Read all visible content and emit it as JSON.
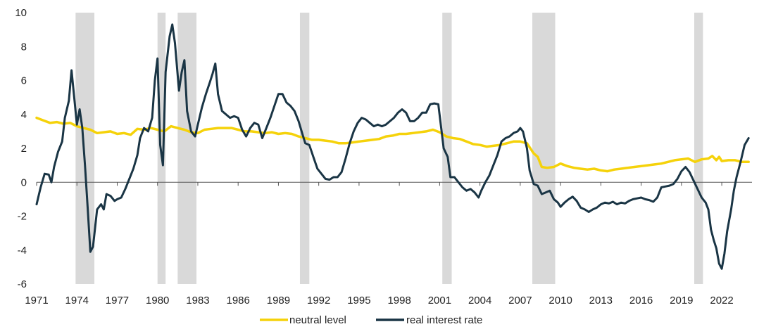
{
  "chart_data": {
    "type": "line",
    "title": "",
    "xlabel": "",
    "ylabel": "",
    "xlim": [
      1971.0,
      2024.25
    ],
    "ylim": [
      -6,
      10
    ],
    "y_ticks": [
      10,
      8,
      6,
      4,
      2,
      0,
      -2,
      -4,
      -6
    ],
    "x_ticks": [
      1971,
      1974,
      1977,
      1980,
      1983,
      1986,
      1989,
      1992,
      1995,
      1998,
      2001,
      2004,
      2007,
      2010,
      2013,
      2016,
      2019,
      2022
    ],
    "legend_position": "bottom-center",
    "recession_bands": [
      [
        1973.9,
        1975.3
      ],
      [
        1980.0,
        1980.6
      ],
      [
        1981.5,
        1982.9
      ],
      [
        1990.6,
        1991.3
      ],
      [
        2001.2,
        2001.9
      ],
      [
        2007.9,
        2009.6
      ],
      [
        2019.95,
        2020.6
      ]
    ],
    "series": [
      {
        "name": "neutral level",
        "color": "#f5d20a",
        "points": [
          [
            1971.0,
            3.8
          ],
          [
            1971.5,
            3.65
          ],
          [
            1972.0,
            3.5
          ],
          [
            1972.5,
            3.55
          ],
          [
            1973.0,
            3.45
          ],
          [
            1973.5,
            3.5
          ],
          [
            1974.0,
            3.3
          ],
          [
            1974.5,
            3.2
          ],
          [
            1975.0,
            3.1
          ],
          [
            1975.5,
            2.9
          ],
          [
            1976.0,
            2.95
          ],
          [
            1976.5,
            3.0
          ],
          [
            1977.0,
            2.85
          ],
          [
            1977.5,
            2.9
          ],
          [
            1978.0,
            2.8
          ],
          [
            1978.5,
            3.15
          ],
          [
            1979.0,
            3.1
          ],
          [
            1979.5,
            3.2
          ],
          [
            1980.0,
            3.1
          ],
          [
            1980.5,
            3.0
          ],
          [
            1981.0,
            3.3
          ],
          [
            1981.5,
            3.2
          ],
          [
            1982.0,
            3.1
          ],
          [
            1982.5,
            2.95
          ],
          [
            1983.0,
            2.9
          ],
          [
            1983.5,
            3.1
          ],
          [
            1984.0,
            3.15
          ],
          [
            1984.5,
            3.2
          ],
          [
            1985.0,
            3.2
          ],
          [
            1985.5,
            3.2
          ],
          [
            1986.0,
            3.1
          ],
          [
            1986.5,
            3.0
          ],
          [
            1987.0,
            3.0
          ],
          [
            1987.5,
            2.95
          ],
          [
            1988.0,
            2.9
          ],
          [
            1988.5,
            2.95
          ],
          [
            1989.0,
            2.85
          ],
          [
            1989.5,
            2.9
          ],
          [
            1990.0,
            2.85
          ],
          [
            1990.5,
            2.7
          ],
          [
            1991.0,
            2.6
          ],
          [
            1991.5,
            2.5
          ],
          [
            1992.0,
            2.5
          ],
          [
            1992.5,
            2.45
          ],
          [
            1993.0,
            2.4
          ],
          [
            1993.5,
            2.3
          ],
          [
            1994.0,
            2.3
          ],
          [
            1994.5,
            2.35
          ],
          [
            1995.0,
            2.4
          ],
          [
            1995.5,
            2.45
          ],
          [
            1996.0,
            2.5
          ],
          [
            1996.5,
            2.55
          ],
          [
            1997.0,
            2.7
          ],
          [
            1997.5,
            2.75
          ],
          [
            1998.0,
            2.85
          ],
          [
            1998.5,
            2.85
          ],
          [
            1999.0,
            2.9
          ],
          [
            1999.5,
            2.95
          ],
          [
            2000.0,
            3.0
          ],
          [
            2000.5,
            3.1
          ],
          [
            2001.0,
            2.95
          ],
          [
            2001.5,
            2.7
          ],
          [
            2002.0,
            2.6
          ],
          [
            2002.5,
            2.55
          ],
          [
            2003.0,
            2.4
          ],
          [
            2003.5,
            2.25
          ],
          [
            2004.0,
            2.2
          ],
          [
            2004.5,
            2.1
          ],
          [
            2005.0,
            2.15
          ],
          [
            2005.5,
            2.2
          ],
          [
            2006.0,
            2.3
          ],
          [
            2006.5,
            2.4
          ],
          [
            2007.0,
            2.4
          ],
          [
            2007.5,
            2.3
          ],
          [
            2008.0,
            1.7
          ],
          [
            2008.3,
            1.5
          ],
          [
            2008.6,
            0.9
          ],
          [
            2009.0,
            0.85
          ],
          [
            2009.5,
            0.9
          ],
          [
            2010.0,
            1.1
          ],
          [
            2010.5,
            0.95
          ],
          [
            2011.0,
            0.85
          ],
          [
            2011.5,
            0.8
          ],
          [
            2012.0,
            0.75
          ],
          [
            2012.5,
            0.8
          ],
          [
            2013.0,
            0.7
          ],
          [
            2013.5,
            0.65
          ],
          [
            2014.0,
            0.75
          ],
          [
            2014.5,
            0.8
          ],
          [
            2015.0,
            0.85
          ],
          [
            2015.5,
            0.9
          ],
          [
            2016.0,
            0.95
          ],
          [
            2016.5,
            1.0
          ],
          [
            2017.0,
            1.05
          ],
          [
            2017.5,
            1.1
          ],
          [
            2018.0,
            1.2
          ],
          [
            2018.5,
            1.3
          ],
          [
            2019.0,
            1.35
          ],
          [
            2019.5,
            1.4
          ],
          [
            2020.0,
            1.2
          ],
          [
            2020.5,
            1.35
          ],
          [
            2021.0,
            1.4
          ],
          [
            2021.3,
            1.55
          ],
          [
            2021.6,
            1.3
          ],
          [
            2021.8,
            1.5
          ],
          [
            2022.0,
            1.25
          ],
          [
            2022.5,
            1.3
          ],
          [
            2023.0,
            1.3
          ],
          [
            2023.5,
            1.2
          ],
          [
            2024.0,
            1.2
          ]
        ]
      },
      {
        "name": "real interest rate",
        "color": "#1a3545",
        "points": [
          [
            1971.0,
            -1.3
          ],
          [
            1971.3,
            -0.3
          ],
          [
            1971.6,
            0.5
          ],
          [
            1971.9,
            0.45
          ],
          [
            1972.1,
            0.0
          ],
          [
            1972.3,
            0.9
          ],
          [
            1972.6,
            1.8
          ],
          [
            1972.9,
            2.4
          ],
          [
            1973.1,
            3.8
          ],
          [
            1973.4,
            4.8
          ],
          [
            1973.6,
            6.6
          ],
          [
            1973.8,
            5.0
          ],
          [
            1974.0,
            3.4
          ],
          [
            1974.2,
            4.3
          ],
          [
            1974.4,
            3.2
          ],
          [
            1974.6,
            1.0
          ],
          [
            1974.8,
            -1.5
          ],
          [
            1975.0,
            -4.1
          ],
          [
            1975.2,
            -3.8
          ],
          [
            1975.5,
            -1.6
          ],
          [
            1975.8,
            -1.3
          ],
          [
            1976.0,
            -1.6
          ],
          [
            1976.2,
            -0.7
          ],
          [
            1976.5,
            -0.8
          ],
          [
            1976.8,
            -1.1
          ],
          [
            1977.0,
            -1.0
          ],
          [
            1977.3,
            -0.9
          ],
          [
            1977.6,
            -0.4
          ],
          [
            1977.9,
            0.2
          ],
          [
            1978.2,
            0.8
          ],
          [
            1978.5,
            1.6
          ],
          [
            1978.7,
            2.6
          ],
          [
            1979.0,
            3.2
          ],
          [
            1979.3,
            3.0
          ],
          [
            1979.6,
            3.8
          ],
          [
            1979.8,
            6.0
          ],
          [
            1980.0,
            7.3
          ],
          [
            1980.2,
            2.2
          ],
          [
            1980.4,
            1.0
          ],
          [
            1980.6,
            6.5
          ],
          [
            1980.9,
            8.6
          ],
          [
            1981.1,
            9.3
          ],
          [
            1981.3,
            8.2
          ],
          [
            1981.6,
            5.4
          ],
          [
            1981.8,
            6.5
          ],
          [
            1982.0,
            7.2
          ],
          [
            1982.2,
            4.2
          ],
          [
            1982.5,
            3.0
          ],
          [
            1982.8,
            2.7
          ],
          [
            1983.0,
            3.4
          ],
          [
            1983.3,
            4.4
          ],
          [
            1983.6,
            5.2
          ],
          [
            1983.9,
            5.9
          ],
          [
            1984.1,
            6.4
          ],
          [
            1984.3,
            7.0
          ],
          [
            1984.5,
            5.2
          ],
          [
            1984.8,
            4.2
          ],
          [
            1985.1,
            4.0
          ],
          [
            1985.4,
            3.8
          ],
          [
            1985.7,
            3.9
          ],
          [
            1986.0,
            3.8
          ],
          [
            1986.3,
            3.1
          ],
          [
            1986.6,
            2.7
          ],
          [
            1986.9,
            3.2
          ],
          [
            1987.2,
            3.5
          ],
          [
            1987.5,
            3.4
          ],
          [
            1987.8,
            2.6
          ],
          [
            1988.1,
            3.2
          ],
          [
            1988.4,
            3.8
          ],
          [
            1988.7,
            4.5
          ],
          [
            1989.0,
            5.2
          ],
          [
            1989.3,
            5.2
          ],
          [
            1989.6,
            4.7
          ],
          [
            1989.9,
            4.5
          ],
          [
            1990.2,
            4.2
          ],
          [
            1990.5,
            3.6
          ],
          [
            1990.8,
            2.8
          ],
          [
            1991.0,
            2.3
          ],
          [
            1991.3,
            2.2
          ],
          [
            1991.6,
            1.5
          ],
          [
            1991.9,
            0.8
          ],
          [
            1992.2,
            0.5
          ],
          [
            1992.5,
            0.2
          ],
          [
            1992.8,
            0.15
          ],
          [
            1993.1,
            0.3
          ],
          [
            1993.4,
            0.3
          ],
          [
            1993.7,
            0.6
          ],
          [
            1994.0,
            1.4
          ],
          [
            1994.3,
            2.3
          ],
          [
            1994.6,
            3.0
          ],
          [
            1994.9,
            3.5
          ],
          [
            1995.2,
            3.8
          ],
          [
            1995.5,
            3.7
          ],
          [
            1995.8,
            3.5
          ],
          [
            1996.1,
            3.3
          ],
          [
            1996.4,
            3.4
          ],
          [
            1996.7,
            3.3
          ],
          [
            1997.0,
            3.4
          ],
          [
            1997.3,
            3.6
          ],
          [
            1997.6,
            3.8
          ],
          [
            1997.9,
            4.1
          ],
          [
            1998.2,
            4.3
          ],
          [
            1998.5,
            4.1
          ],
          [
            1998.8,
            3.6
          ],
          [
            1999.1,
            3.6
          ],
          [
            1999.4,
            3.8
          ],
          [
            1999.7,
            4.1
          ],
          [
            2000.0,
            4.1
          ],
          [
            2000.3,
            4.6
          ],
          [
            2000.6,
            4.65
          ],
          [
            2000.9,
            4.6
          ],
          [
            2001.1,
            3.3
          ],
          [
            2001.3,
            2.0
          ],
          [
            2001.6,
            1.5
          ],
          [
            2001.8,
            0.3
          ],
          [
            2002.1,
            0.3
          ],
          [
            2002.4,
            0.0
          ],
          [
            2002.7,
            -0.3
          ],
          [
            2003.0,
            -0.5
          ],
          [
            2003.3,
            -0.4
          ],
          [
            2003.6,
            -0.6
          ],
          [
            2003.9,
            -0.9
          ],
          [
            2004.1,
            -0.5
          ],
          [
            2004.4,
            0.0
          ],
          [
            2004.7,
            0.4
          ],
          [
            2005.0,
            1.0
          ],
          [
            2005.3,
            1.6
          ],
          [
            2005.6,
            2.4
          ],
          [
            2005.9,
            2.6
          ],
          [
            2006.2,
            2.7
          ],
          [
            2006.5,
            2.9
          ],
          [
            2006.8,
            3.0
          ],
          [
            2007.0,
            3.2
          ],
          [
            2007.2,
            3.0
          ],
          [
            2007.5,
            2.0
          ],
          [
            2007.7,
            0.7
          ],
          [
            2008.0,
            -0.1
          ],
          [
            2008.3,
            -0.2
          ],
          [
            2008.6,
            -0.7
          ],
          [
            2008.9,
            -0.6
          ],
          [
            2009.2,
            -0.5
          ],
          [
            2009.5,
            -1.0
          ],
          [
            2009.8,
            -1.2
          ],
          [
            2010.0,
            -1.45
          ],
          [
            2010.3,
            -1.2
          ],
          [
            2010.6,
            -1.0
          ],
          [
            2010.9,
            -0.85
          ],
          [
            2011.2,
            -1.1
          ],
          [
            2011.5,
            -1.5
          ],
          [
            2011.8,
            -1.6
          ],
          [
            2012.1,
            -1.75
          ],
          [
            2012.4,
            -1.6
          ],
          [
            2012.7,
            -1.5
          ],
          [
            2013.0,
            -1.3
          ],
          [
            2013.3,
            -1.2
          ],
          [
            2013.6,
            -1.25
          ],
          [
            2013.9,
            -1.15
          ],
          [
            2014.2,
            -1.3
          ],
          [
            2014.5,
            -1.2
          ],
          [
            2014.8,
            -1.25
          ],
          [
            2015.1,
            -1.1
          ],
          [
            2015.4,
            -1.0
          ],
          [
            2015.7,
            -0.95
          ],
          [
            2016.0,
            -0.9
          ],
          [
            2016.3,
            -1.0
          ],
          [
            2016.6,
            -1.05
          ],
          [
            2016.9,
            -1.15
          ],
          [
            2017.2,
            -0.9
          ],
          [
            2017.5,
            -0.3
          ],
          [
            2017.8,
            -0.25
          ],
          [
            2018.1,
            -0.2
          ],
          [
            2018.4,
            -0.1
          ],
          [
            2018.7,
            0.2
          ],
          [
            2019.0,
            0.65
          ],
          [
            2019.3,
            0.9
          ],
          [
            2019.6,
            0.6
          ],
          [
            2019.9,
            0.1
          ],
          [
            2020.2,
            -0.4
          ],
          [
            2020.5,
            -0.9
          ],
          [
            2020.8,
            -1.2
          ],
          [
            2021.0,
            -1.6
          ],
          [
            2021.2,
            -2.8
          ],
          [
            2021.4,
            -3.4
          ],
          [
            2021.6,
            -3.9
          ],
          [
            2021.8,
            -4.8
          ],
          [
            2022.0,
            -5.1
          ],
          [
            2022.2,
            -4.2
          ],
          [
            2022.4,
            -2.9
          ],
          [
            2022.7,
            -1.6
          ],
          [
            2022.9,
            -0.5
          ],
          [
            2023.1,
            0.3
          ],
          [
            2023.4,
            1.2
          ],
          [
            2023.7,
            2.2
          ],
          [
            2024.0,
            2.6
          ]
        ]
      }
    ]
  }
}
